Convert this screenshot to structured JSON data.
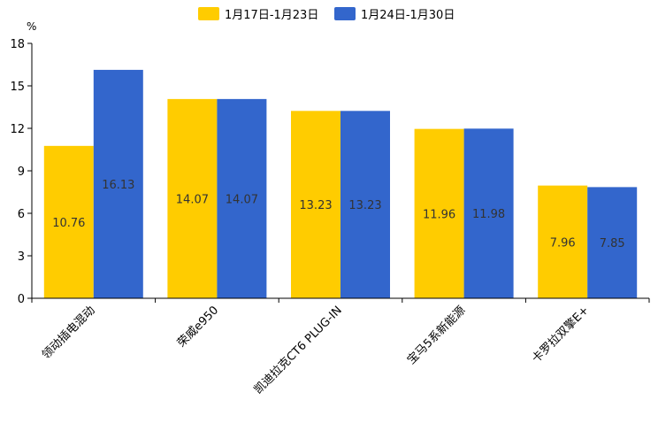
{
  "chart_data": {
    "type": "bar",
    "title": "",
    "xlabel": "",
    "ylabel": "%",
    "ylim": [
      0,
      18
    ],
    "yticks": [
      0,
      3,
      6,
      9,
      12,
      15,
      18
    ],
    "grid": false,
    "legend_position": "top-center",
    "categories": [
      "领动插电混动",
      "荣威e950",
      "凯迪拉克CT6 PLUG-IN",
      "宝马5系新能源",
      "卡罗拉双擎E+"
    ],
    "series": [
      {
        "name": "1月17日-1月23日",
        "color": "#FFCC00",
        "values": [
          10.76,
          14.07,
          13.23,
          11.96,
          7.96
        ]
      },
      {
        "name": "1月24日-1月30日",
        "color": "#3366CC",
        "values": [
          16.13,
          14.07,
          13.23,
          11.98,
          7.85
        ]
      }
    ]
  }
}
